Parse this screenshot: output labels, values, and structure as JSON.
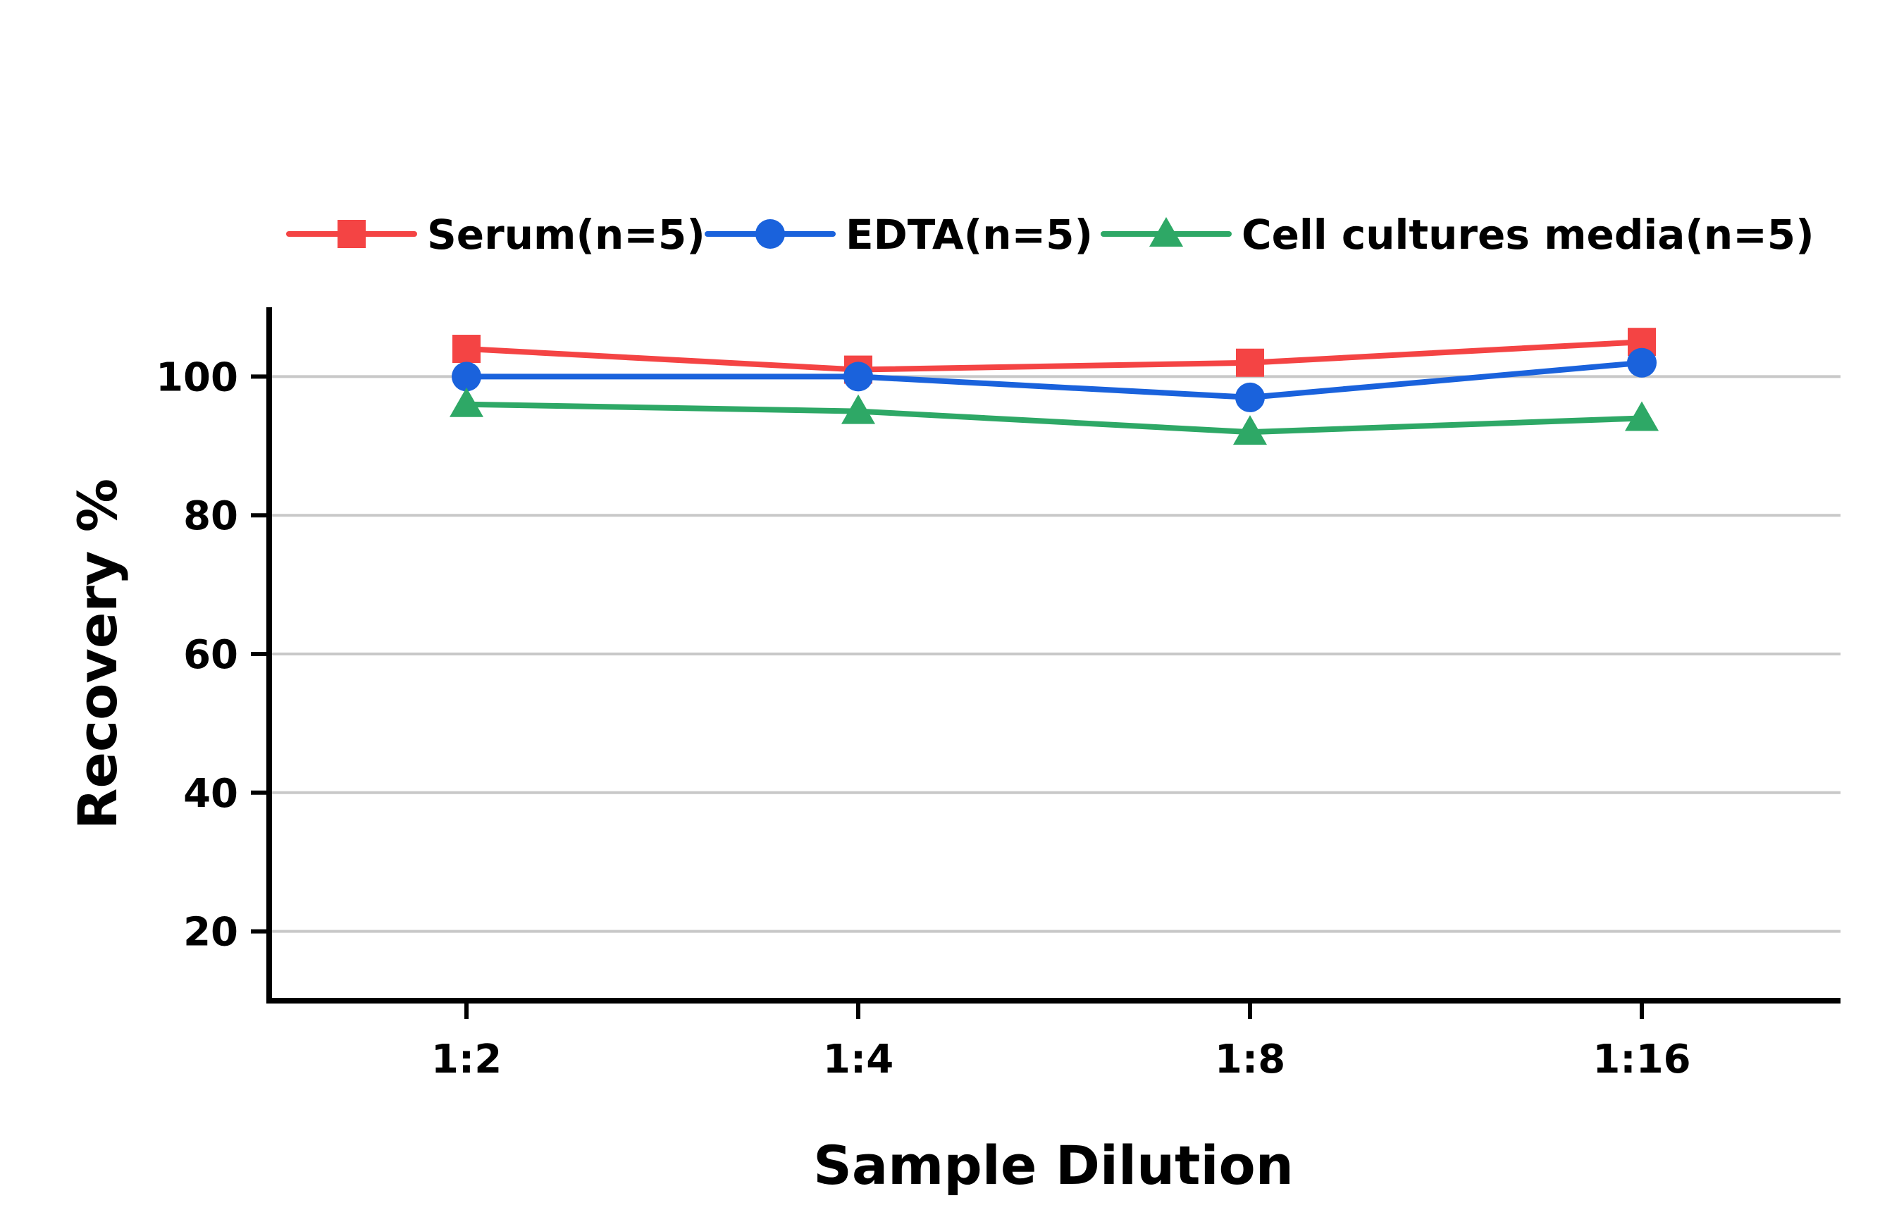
{
  "chart_data": {
    "type": "line",
    "title": "",
    "xlabel": "Sample Dilution",
    "ylabel": "Recovery %",
    "categories": [
      "1:2",
      "1:4",
      "1:8",
      "1:16"
    ],
    "ylim": [
      10,
      110
    ],
    "yticks": [
      20,
      40,
      60,
      80,
      100
    ],
    "y_tick_labels": [
      "20",
      "40",
      "60",
      "80",
      "100"
    ],
    "grid": true,
    "legend_position": "top",
    "series": [
      {
        "name": "Serum(n=5)",
        "values": [
          104,
          101,
          102,
          105
        ],
        "color": "#f44444",
        "marker": "square"
      },
      {
        "name": "EDTA(n=5)",
        "values": [
          100,
          100,
          97,
          102
        ],
        "color": "#1a62dc",
        "marker": "circle"
      },
      {
        "name": "Cell cultures media(n=5)",
        "values": [
          96,
          95,
          92,
          94
        ],
        "color": "#2ea866",
        "marker": "triangle"
      }
    ]
  }
}
